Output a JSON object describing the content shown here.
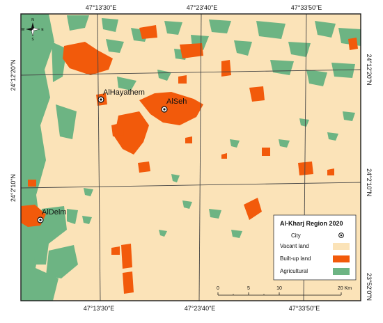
{
  "colors": {
    "vacant": "#fbe3b8",
    "builtup": "#f25a0b",
    "agricultural": "#6db483",
    "frame": "#1a1a1a",
    "grid": "#444444"
  },
  "ticks": {
    "top": [
      "47°13'30\"E",
      "47°23'40\"E",
      "47°33'50\"E"
    ],
    "bottom": [
      "47°13'30\"E",
      "47°23'40\"E",
      "47°33'50\"E"
    ],
    "left": [
      "24°12'20\"N",
      "24°2'10\"N"
    ],
    "right": [
      "24°12'20\"N",
      "24°2'10\"N"
    ],
    "corner_bottom_right": "23°52'0\"N"
  },
  "compass": {
    "n": "N",
    "s": "S",
    "e": "E",
    "w": "W",
    "icon": "compass-rose-icon"
  },
  "cities": [
    {
      "name": "AlHayathem"
    },
    {
      "name": "AlSeh"
    },
    {
      "name": "AlDelm"
    }
  ],
  "legend": {
    "title": "Al-Kharj Region 2020",
    "items": [
      {
        "label": "City",
        "type": "city"
      },
      {
        "label": "Vacant land",
        "type": "vacant"
      },
      {
        "label": "Built-up land",
        "type": "builtup"
      },
      {
        "label": "Agricultural",
        "type": "agricultural"
      }
    ]
  },
  "scalebar": {
    "labels": [
      "0",
      "5",
      "10",
      "20 Km"
    ]
  }
}
